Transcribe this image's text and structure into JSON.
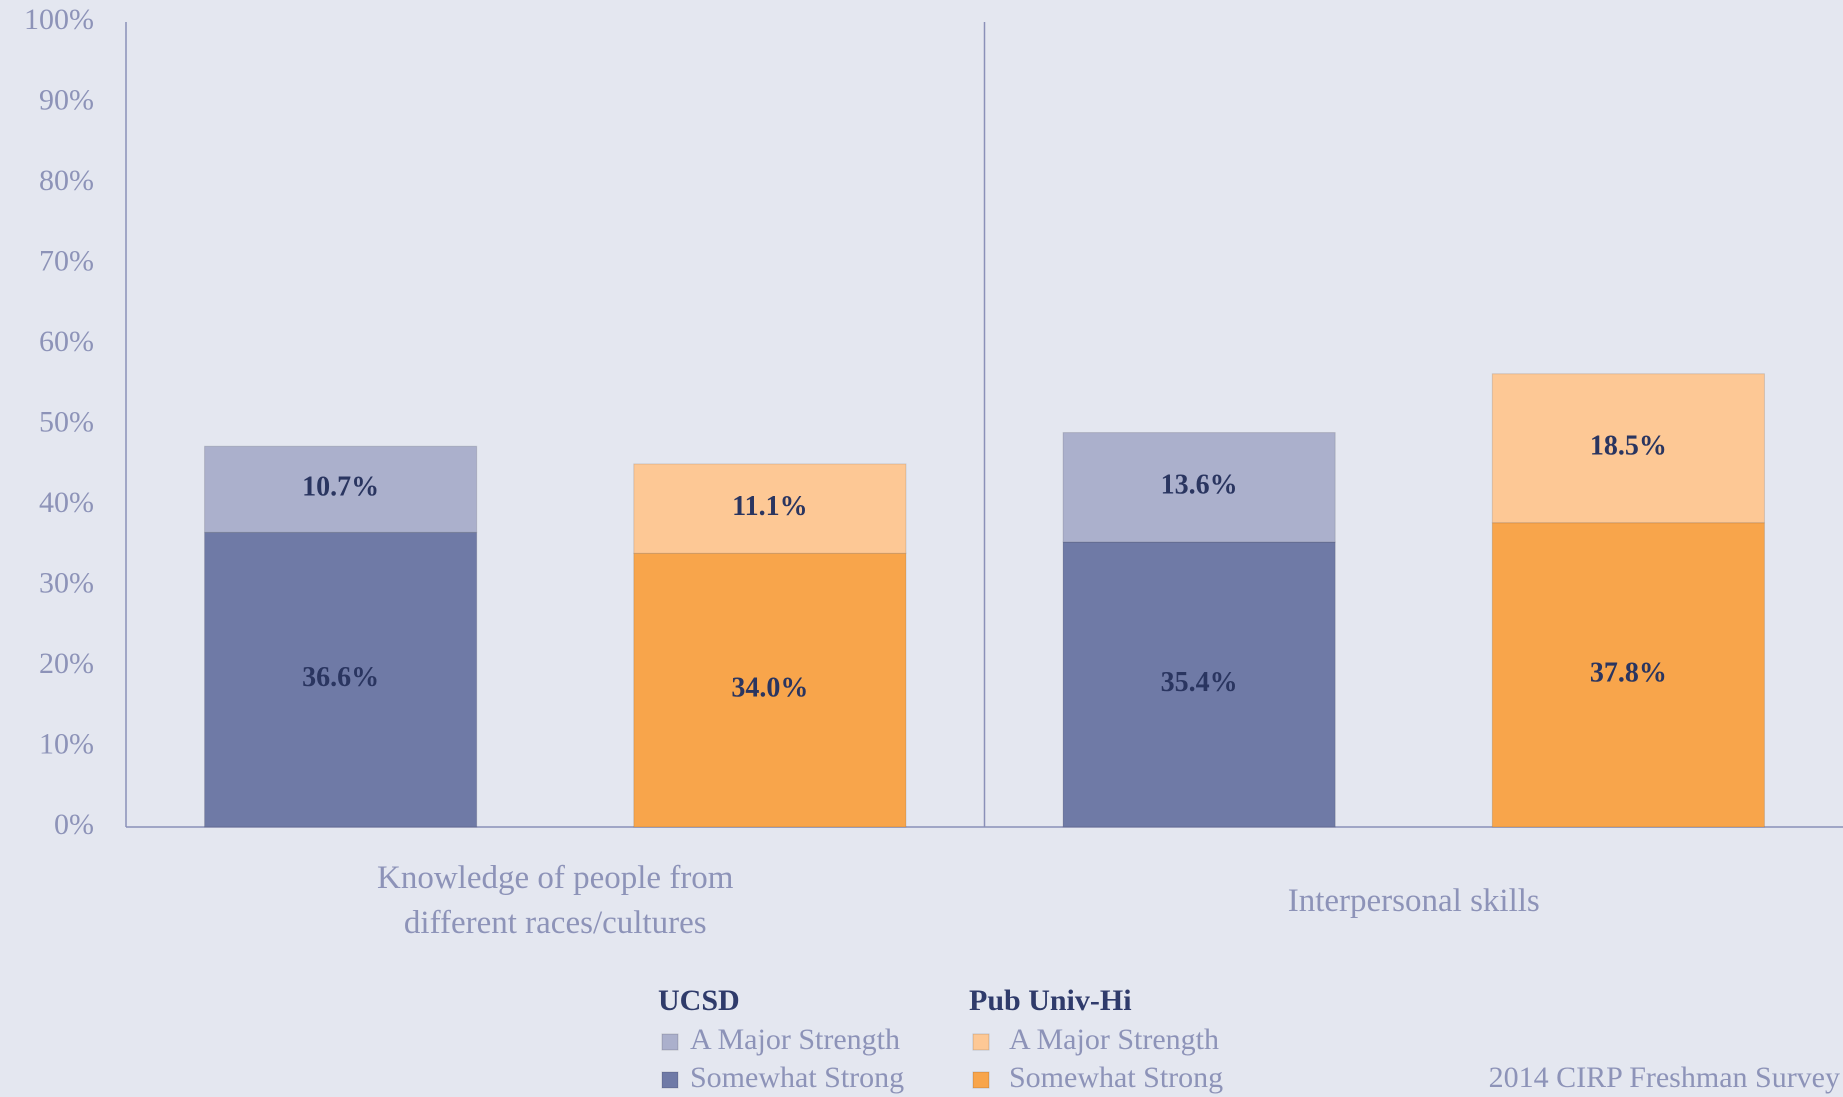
{
  "chart_data": {
    "type": "stacked_bar",
    "categories": [
      "Knowledge of people from different races/cultures",
      "Interpersonal skills"
    ],
    "groups": [
      {
        "name": "UCSD",
        "series": [
          {
            "name": "Somewhat Strong",
            "color": "#6f7aa6",
            "values": [
              36.6,
              35.4
            ],
            "value_labels": [
              "36.6%",
              "35.4%"
            ]
          },
          {
            "name": "A Major Strength",
            "color": "#abb0cc",
            "values": [
              10.7,
              13.6
            ],
            "value_labels": [
              "10.7%",
              "13.6%"
            ]
          }
        ]
      },
      {
        "name": "Pub Univ-Hi",
        "series": [
          {
            "name": "Somewhat Strong",
            "color": "#f8a54b",
            "values": [
              34.0,
              37.8
            ],
            "value_labels": [
              "34.0%",
              "37.8%"
            ]
          },
          {
            "name": "A Major Strength",
            "color": "#fdc895",
            "values": [
              11.1,
              18.5
            ],
            "value_labels": [
              "11.1%",
              "18.5%"
            ]
          }
        ]
      }
    ],
    "ylim": [
      0,
      100
    ],
    "yticks": [
      {
        "value": 0,
        "label": "0%"
      },
      {
        "value": 10,
        "label": "10%"
      },
      {
        "value": 20,
        "label": "20%"
      },
      {
        "value": 30,
        "label": "30%"
      },
      {
        "value": 40,
        "label": "40%"
      },
      {
        "value": 50,
        "label": "50%"
      },
      {
        "value": 60,
        "label": "60%"
      },
      {
        "value": 70,
        "label": "70%"
      },
      {
        "value": 80,
        "label": "80%"
      },
      {
        "value": 90,
        "label": "90%"
      },
      {
        "value": 100,
        "label": "100%"
      }
    ],
    "source": "2014 CIRP Freshman Survey"
  }
}
